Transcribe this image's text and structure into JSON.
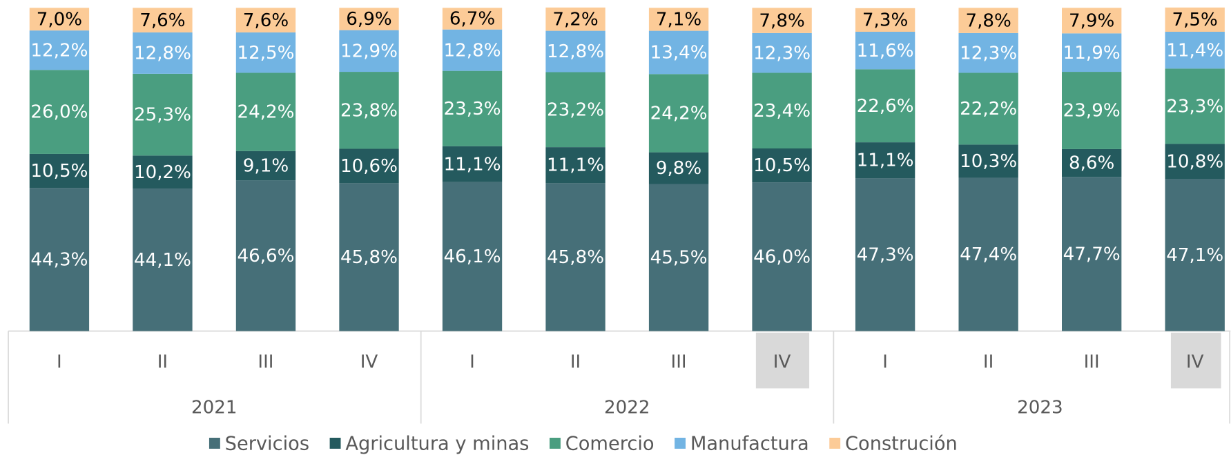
{
  "chart_data": {
    "type": "stacked_bar",
    "categories": [
      "I",
      "II",
      "III",
      "IV",
      "I",
      "II",
      "III",
      "IV",
      "I",
      "II",
      "III",
      "IV"
    ],
    "groups": [
      "2021",
      "2022",
      "2023"
    ],
    "ylim": [
      0,
      100
    ],
    "series": [
      {
        "name": "Servicios",
        "color": "#466f78",
        "values": [
          44.3,
          44.1,
          46.6,
          45.8,
          46.1,
          45.8,
          45.5,
          46.0,
          47.3,
          47.4,
          47.7,
          47.1
        ],
        "value_labels": [
          "44,3%",
          "44,1%",
          "46,6%",
          "45,8%",
          "46,1%",
          "45,8%",
          "45,5%",
          "46,0%",
          "47,3%",
          "47,4%",
          "47,7%",
          "47,1%"
        ]
      },
      {
        "name": "Agricultura y minas",
        "color": "#245a5e",
        "values": [
          10.5,
          10.2,
          9.1,
          10.6,
          11.1,
          11.1,
          9.8,
          10.5,
          11.1,
          10.3,
          8.6,
          10.8
        ],
        "value_labels": [
          "10,5%",
          "10,2%",
          "9,1%",
          "10,6%",
          "11,1%",
          "11,1%",
          "9,8%",
          "10,5%",
          "11,1%",
          "10,3%",
          "8,6%",
          "10,8%"
        ]
      },
      {
        "name": "Comercio",
        "color": "#4a9e80",
        "values": [
          26.0,
          25.3,
          24.2,
          23.8,
          23.3,
          23.2,
          24.2,
          23.4,
          22.6,
          22.2,
          23.9,
          23.3
        ],
        "value_labels": [
          "26,0%",
          "25,3%",
          "24,2%",
          "23,8%",
          "23,3%",
          "23,2%",
          "24,2%",
          "23,4%",
          "22,6%",
          "22,2%",
          "23,9%",
          "23,3%"
        ]
      },
      {
        "name": "Manufactura",
        "color": "#72b4e3",
        "values": [
          12.2,
          12.8,
          12.5,
          12.9,
          12.8,
          12.8,
          13.4,
          12.3,
          11.6,
          12.3,
          11.9,
          11.4
        ],
        "value_labels": [
          "12,2%",
          "12,8%",
          "12,5%",
          "12,9%",
          "12,8%",
          "12,8%",
          "13,4%",
          "12,3%",
          "11,6%",
          "12,3%",
          "11,9%",
          "11,4%"
        ]
      },
      {
        "name": "Construción",
        "color": "#fccb97",
        "values": [
          7.0,
          7.6,
          7.6,
          6.9,
          6.7,
          7.2,
          7.1,
          7.8,
          7.3,
          7.8,
          7.9,
          7.5
        ],
        "value_labels": [
          "7,0%",
          "7,6%",
          "7,6%",
          "6,9%",
          "6,7%",
          "7,2%",
          "7,1%",
          "7,8%",
          "7,3%",
          "7,8%",
          "7,9%",
          "7,5%"
        ]
      }
    ]
  }
}
